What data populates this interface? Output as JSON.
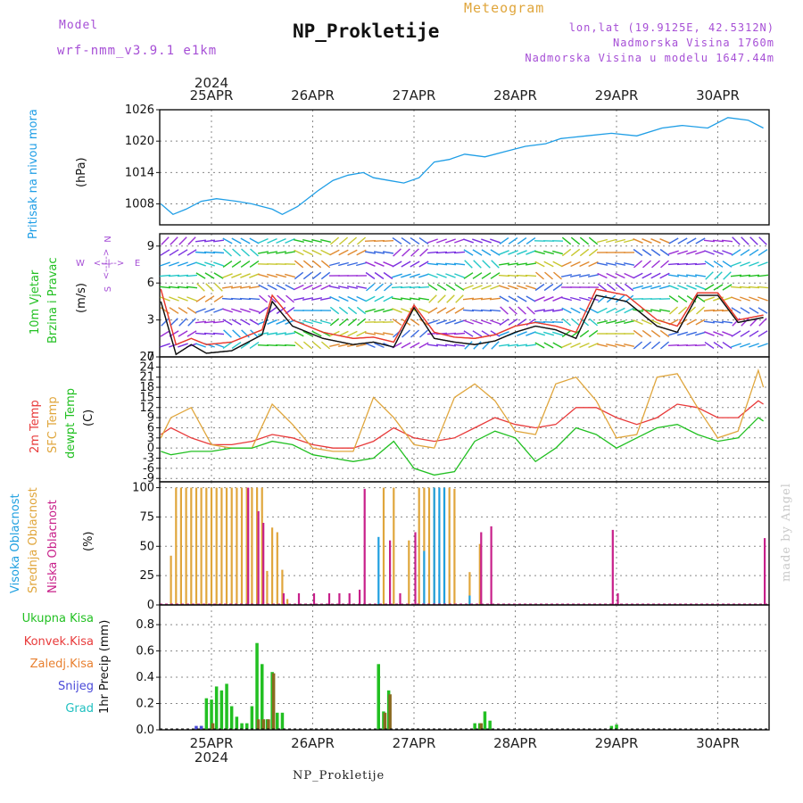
{
  "header": {
    "model_label": "Model",
    "model_name": "wrf-nmm_v3.9.1 e1km",
    "app_title": "Meteogram",
    "station": "NP_Prokletije",
    "lonlat": "lon,lat (19.9125E, 42.5312N)",
    "altitude": "Nadmorska Visina 1760m",
    "model_altitude": "Nadmorska Visina u modelu 1647.44m",
    "year": "2024"
  },
  "footer": {
    "station": "NP_Prokletije",
    "watermark": "made by Angel"
  },
  "day_labels": [
    "25APR",
    "26APR",
    "27APR",
    "28APR",
    "29APR",
    "30APR"
  ],
  "panel_labels": {
    "pressure": [
      "Pritisak na nivou mora",
      "(hPa)"
    ],
    "wind": [
      "10m Vjetar",
      "Brzina i Pravac",
      "(m/s)"
    ],
    "wind_rose": [
      "N",
      "E",
      "S",
      "W",
      "<--|-->"
    ],
    "temp": [
      "2m Temp",
      "SFC Temp",
      "dewpt Temp",
      "(C)"
    ],
    "cloud": [
      "Visoka Oblacnost",
      "Srednja Oblacnost",
      "Niska Oblacnost",
      "(%)"
    ],
    "precip": [
      "Ukupna Kisa",
      "Konvek.Kisa",
      "Zaledj.Kisa",
      "Snijeg",
      "Grad",
      "1hr Precip (mm)"
    ]
  },
  "colors": {
    "pressure": "#1f9ee6",
    "wind_speed": "#111111",
    "wind_gust": "#e83a2e",
    "t2m": "#e83a3a",
    "tsfc": "#e0a63c",
    "dewpt": "#22c022",
    "cloud_high": "#1fa0e0",
    "cloud_mid": "#e0a63c",
    "cloud_low": "#c8208a",
    "total_rain": "#22c022",
    "conv_rain": "#e83a3a",
    "frozen_rain": "#e88030",
    "snow": "#4a4ad8",
    "hail": "#20c0c0",
    "label_purple": "#a64fd6"
  },
  "chart_data": [
    {
      "type": "line",
      "title": "",
      "ylabel": "(hPa)",
      "ylim": [
        1004,
        1026
      ],
      "yticks": [
        1008,
        1014,
        1020,
        1026
      ],
      "x_unit": "days since 2024-04-24 12:00 UTC",
      "series": [
        {
          "name": "Pritisak na nivou mora",
          "x": [
            0,
            0.12,
            0.25,
            0.4,
            0.55,
            0.75,
            0.9,
            1.0,
            1.1,
            1.2,
            1.35,
            1.55,
            1.7,
            1.85,
            2.0,
            2.1,
            2.25,
            2.4,
            2.55,
            2.7,
            2.85,
            3.0,
            3.2,
            3.4,
            3.6,
            3.8,
            3.95,
            4.2,
            4.45,
            4.7,
            4.95,
            5.15,
            5.4,
            5.6,
            5.8,
            5.95
          ],
          "y": [
            1008,
            1006,
            1007,
            1008.5,
            1009,
            1008.5,
            1008,
            1007.5,
            1007,
            1006,
            1007.5,
            1010.5,
            1012.5,
            1013.5,
            1014,
            1013,
            1012.5,
            1012,
            1013,
            1016,
            1016.5,
            1017.5,
            1017,
            1018,
            1019,
            1019.5,
            1020.5,
            1021,
            1021.5,
            1021,
            1022.5,
            1023,
            1022.5,
            1024.5,
            1024,
            1022.5
          ]
        }
      ]
    },
    {
      "type": "line",
      "title": "",
      "ylabel": "(m/s)",
      "ylim": [
        0,
        10
      ],
      "yticks": [
        0,
        3,
        6,
        9
      ],
      "series": [
        {
          "name": "wind speed",
          "x": [
            0,
            0.15,
            0.3,
            0.45,
            0.7,
            1.0,
            1.1,
            1.3,
            1.6,
            1.9,
            2.1,
            2.3,
            2.5,
            2.7,
            2.9,
            3.1,
            3.3,
            3.5,
            3.7,
            3.9,
            4.1,
            4.3,
            4.6,
            4.9,
            5.1,
            5.3,
            5.5,
            5.7,
            5.95
          ],
          "y": [
            4.5,
            0.2,
            1.0,
            0.3,
            0.5,
            1.8,
            4.5,
            2.5,
            1.5,
            1.0,
            1.2,
            0.8,
            4.0,
            1.5,
            1.2,
            1.0,
            1.3,
            2.0,
            2.5,
            2.2,
            1.5,
            5.0,
            4.5,
            2.5,
            2.0,
            5.0,
            5.0,
            2.8,
            3.2
          ]
        },
        {
          "name": "wind gust",
          "x": [
            0,
            0.15,
            0.3,
            0.45,
            0.7,
            1.0,
            1.1,
            1.3,
            1.6,
            1.9,
            2.1,
            2.3,
            2.5,
            2.7,
            2.9,
            3.1,
            3.3,
            3.5,
            3.7,
            3.9,
            4.1,
            4.3,
            4.6,
            4.9,
            5.1,
            5.3,
            5.5,
            5.7,
            5.95
          ],
          "y": [
            5.5,
            1.0,
            1.5,
            1.0,
            1.2,
            2.2,
            5.0,
            3.0,
            2.0,
            1.5,
            1.6,
            1.2,
            4.2,
            2.0,
            1.6,
            1.5,
            1.8,
            2.5,
            2.8,
            2.5,
            2.0,
            5.5,
            5.0,
            3.0,
            2.5,
            5.2,
            5.2,
            3.0,
            3.4
          ]
        }
      ]
    },
    {
      "type": "line",
      "title": "",
      "ylabel": "(C)",
      "ylim": [
        -10,
        27
      ],
      "yticks": [
        -9,
        -6,
        -3,
        0,
        3,
        6,
        9,
        12,
        15,
        18,
        21,
        24,
        27
      ],
      "series": [
        {
          "name": "2m Temp",
          "x": [
            0,
            0.1,
            0.3,
            0.5,
            0.7,
            0.9,
            1.1,
            1.3,
            1.5,
            1.7,
            1.9,
            2.1,
            2.3,
            2.5,
            2.7,
            2.9,
            3.1,
            3.3,
            3.5,
            3.7,
            3.9,
            4.1,
            4.3,
            4.5,
            4.7,
            4.9,
            5.1,
            5.3,
            5.5,
            5.7,
            5.9,
            5.95
          ],
          "y": [
            4,
            6,
            3,
            1,
            1,
            2,
            4,
            3,
            1,
            0,
            0,
            2,
            6,
            3,
            2,
            3,
            6,
            9,
            7,
            6,
            7,
            12,
            12,
            9,
            7,
            9,
            13,
            12,
            9,
            9,
            14,
            13
          ]
        },
        {
          "name": "SFC Temp",
          "x": [
            0,
            0.1,
            0.3,
            0.5,
            0.7,
            0.9,
            1.1,
            1.3,
            1.5,
            1.7,
            1.9,
            2.1,
            2.3,
            2.5,
            2.7,
            2.9,
            3.1,
            3.3,
            3.5,
            3.7,
            3.9,
            4.1,
            4.3,
            4.5,
            4.7,
            4.9,
            5.1,
            5.3,
            5.5,
            5.7,
            5.9,
            5.95
          ],
          "y": [
            3,
            9,
            12,
            1,
            0,
            0,
            13,
            7,
            0,
            -1,
            -1,
            15,
            9,
            1,
            0,
            15,
            19,
            14,
            5,
            4,
            19,
            21,
            14,
            3,
            4,
            21,
            22,
            12,
            3,
            5,
            23,
            18
          ]
        },
        {
          "name": "dewpt Temp",
          "x": [
            0,
            0.1,
            0.3,
            0.5,
            0.7,
            0.9,
            1.1,
            1.3,
            1.5,
            1.7,
            1.9,
            2.1,
            2.3,
            2.5,
            2.7,
            2.9,
            3.1,
            3.3,
            3.5,
            3.7,
            3.9,
            4.1,
            4.3,
            4.5,
            4.7,
            4.9,
            5.1,
            5.3,
            5.5,
            5.7,
            5.9,
            5.95
          ],
          "y": [
            -1,
            -2,
            -1,
            -1,
            0,
            0,
            2,
            1,
            -2,
            -3,
            -4,
            -3,
            2,
            -6,
            -8,
            -7,
            2,
            5,
            3,
            -4,
            0,
            6,
            4,
            0,
            3,
            6,
            7,
            4,
            2,
            3,
            9,
            8
          ]
        }
      ]
    },
    {
      "type": "bar",
      "title": "",
      "ylabel": "(%)",
      "ylim": [
        0,
        105
      ],
      "yticks": [
        0,
        25,
        50,
        75,
        100
      ],
      "series": [
        {
          "name": "Srednja Oblacnost",
          "x": [
            0.1,
            0.15,
            0.2,
            0.25,
            0.3,
            0.35,
            0.4,
            0.45,
            0.5,
            0.55,
            0.6,
            0.65,
            0.7,
            0.75,
            0.8,
            0.85,
            0.9,
            0.95,
            1.0,
            1.05,
            1.1,
            1.15,
            1.2,
            1.25,
            2.2,
            2.3,
            2.45,
            2.55,
            2.6,
            2.65,
            2.7,
            2.8,
            2.85,
            2.9,
            3.05,
            3.15
          ],
          "values": [
            42,
            100,
            100,
            100,
            100,
            100,
            100,
            100,
            100,
            100,
            100,
            100,
            100,
            100,
            100,
            100,
            100,
            100,
            100,
            29,
            66,
            62,
            30,
            5,
            100,
            100,
            55,
            100,
            100,
            100,
            100,
            100,
            100,
            99,
            28,
            52
          ]
        },
        {
          "name": "Niska Oblacnost",
          "x": [
            0.85,
            0.95,
            1.0,
            1.2,
            1.35,
            1.5,
            1.65,
            1.75,
            1.85,
            1.95,
            2.0,
            2.25,
            2.35,
            2.5,
            3.15,
            3.25,
            4.45,
            4.5,
            5.95
          ],
          "values": [
            100,
            80,
            70,
            10,
            10,
            10,
            10,
            10,
            10,
            13,
            99,
            55,
            10,
            62,
            62,
            67,
            64,
            10,
            57
          ]
        },
        {
          "name": "Visoka Oblacnost",
          "x": [
            2.15,
            2.6,
            2.7,
            2.75,
            2.8,
            3.05
          ],
          "values": [
            58,
            46,
            100,
            100,
            100,
            8
          ]
        }
      ]
    },
    {
      "type": "bar",
      "title": "",
      "ylabel": "1hr Precip (mm)",
      "ylim": [
        0,
        0.95
      ],
      "yticks": [
        0,
        0.2,
        0.4,
        0.6,
        0.8
      ],
      "series": [
        {
          "name": "Ukupna Kisa",
          "x": [
            0.4,
            0.45,
            0.5,
            0.55,
            0.6,
            0.65,
            0.7,
            0.75,
            0.8,
            0.85,
            0.9,
            0.95,
            1.0,
            1.05,
            1.1,
            1.15,
            1.2,
            2.15,
            2.2,
            2.25,
            3.1,
            3.15,
            3.2,
            3.25,
            4.45,
            4.5
          ],
          "values": [
            0.03,
            0.24,
            0.23,
            0.33,
            0.3,
            0.35,
            0.18,
            0.1,
            0.05,
            0.05,
            0.18,
            0.66,
            0.5,
            0.08,
            0.44,
            0.13,
            0.13,
            0.5,
            0.14,
            0.3,
            0.05,
            0.05,
            0.14,
            0.07,
            0.03,
            0.04
          ]
        },
        {
          "name": "Konvek.Kisa",
          "x": [
            0.5,
            0.95,
            1.0,
            1.05,
            1.1,
            2.2,
            2.25,
            3.15
          ],
          "values": [
            0.05,
            0.08,
            0.08,
            0.08,
            0.43,
            0.13,
            0.27,
            0.05
          ]
        },
        {
          "name": "Snijeg",
          "x": [
            0.35,
            0.4
          ],
          "values": [
            0.03,
            0.03
          ]
        }
      ]
    }
  ]
}
